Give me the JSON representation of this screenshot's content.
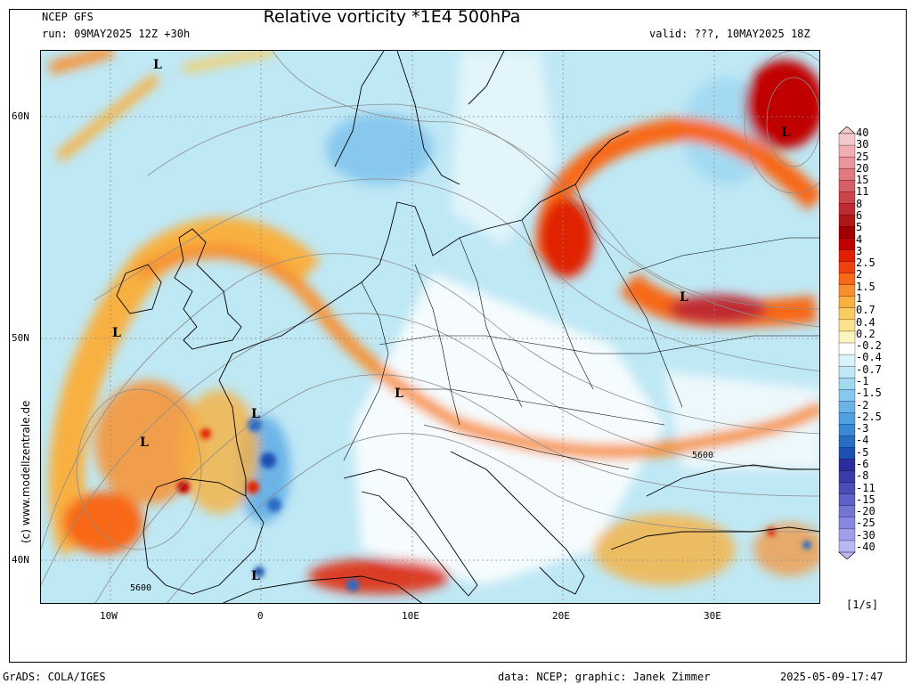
{
  "header": {
    "model": "NCEP GFS",
    "run": "run: 09MAY2025 12Z +30h",
    "title": "Relative vorticity *1E4 500hPa",
    "valid": "valid: ???, 10MAY2025 18Z"
  },
  "axes": {
    "lat_labels": [
      "60N",
      "50N",
      "40N"
    ],
    "lon_labels": [
      "10W",
      "0",
      "10E",
      "20E",
      "30E"
    ]
  },
  "side_credit": "(c) www.modellzentrale.de",
  "colorbar": {
    "labels": [
      "40",
      "30",
      "25",
      "20",
      "15",
      "11",
      "8",
      "6",
      "5",
      "4",
      "3",
      "2.5",
      "2",
      "1.5",
      "1",
      "0.7",
      "0.4",
      "0.2",
      "-0.2",
      "-0.4",
      "-0.7",
      "-1",
      "-1.5",
      "-2",
      "-2.5",
      "-3",
      "-4",
      "-5",
      "-6",
      "-8",
      "-11",
      "-15",
      "-20",
      "-25",
      "-30",
      "-40"
    ],
    "colors": [
      "#f4c8cc",
      "#eeaeb3",
      "#e8949a",
      "#df7a80",
      "#d65f66",
      "#cc454c",
      "#c02b31",
      "#b01518",
      "#a00000",
      "#c00000",
      "#e02000",
      "#f04010",
      "#f86818",
      "#f89030",
      "#f8b040",
      "#f8cc60",
      "#fae38c",
      "#fdf3c0",
      "#ffffff",
      "#dcf2fa",
      "#bfe8f5",
      "#a3daf2",
      "#88c8ee",
      "#6cb4e8",
      "#50a0e0",
      "#3a88d4",
      "#2a6cc4",
      "#1c50b0",
      "#2c2c9c",
      "#3c3ca8",
      "#4c4cb8",
      "#6060c8",
      "#7474d4",
      "#8888e0",
      "#a0a0ea",
      "#b8b8f2"
    ],
    "unit": "[1/s]"
  },
  "annotations": {
    "lows": [
      "L",
      "L",
      "L",
      "L",
      "L",
      "L",
      "L",
      "L"
    ],
    "contours": [
      "5600",
      "5600"
    ]
  },
  "footer": {
    "left": "GrADS: COLA/IGES",
    "right": "data: NCEP; graphic: Janek Zimmer",
    "date": "2025-05-09-17:47"
  }
}
